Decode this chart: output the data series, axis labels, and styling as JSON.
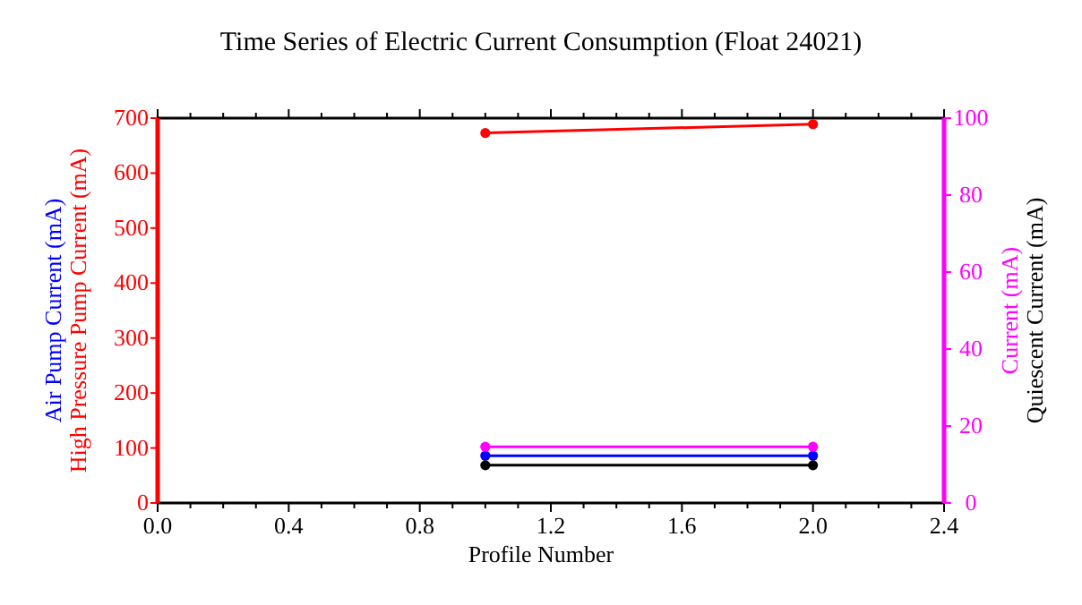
{
  "chart_data": {
    "type": "line",
    "title": "Time Series of Electric Current Consumption (Float 24021)",
    "xlabel": "Profile Number",
    "ylabel": "Air Pump Current (mA)\nHigh Pressure Pump Current (mA)",
    "y2label": "Current (mA)\nQuiescent Current (mA)",
    "x": [
      1,
      2
    ],
    "series": [
      {
        "color": "#0000ff",
        "values": [
          86,
          86
        ]
      },
      {
        "color": "#ff0000",
        "values": [
          673,
          689
        ]
      },
      {
        "color": "#ff00ff",
        "axis": "y2",
        "values": [
          14.6,
          14.6
        ]
      },
      {
        "color": "#000000",
        "axis": "y2",
        "values": [
          9.8,
          9.8
        ]
      }
    ],
    "xlim": [
      0,
      2.4
    ],
    "xticks": [
      {
        "value": 0,
        "label": "0.0"
      },
      {
        "value": 0.1,
        "label": null
      },
      {
        "value": 0.2,
        "label": null
      },
      {
        "value": 0.3,
        "label": null
      },
      {
        "value": 0.4,
        "label": "0.4"
      },
      {
        "value": 0.5,
        "label": null
      },
      {
        "value": 0.6,
        "label": null
      },
      {
        "value": 0.7,
        "label": null
      },
      {
        "value": 0.8,
        "label": "0.8"
      },
      {
        "value": 0.9,
        "label": null
      },
      {
        "value": 1.0,
        "label": null
      },
      {
        "value": 1.1,
        "label": null
      },
      {
        "value": 1.2,
        "label": "1.2"
      },
      {
        "value": 1.3,
        "label": null
      },
      {
        "value": 1.4,
        "label": null
      },
      {
        "value": 1.5,
        "label": null
      },
      {
        "value": 1.6,
        "label": "1.6"
      },
      {
        "value": 1.7,
        "label": null
      },
      {
        "value": 1.8,
        "label": null
      },
      {
        "value": 1.9,
        "label": null
      },
      {
        "value": 2.0,
        "label": "2.0"
      },
      {
        "value": 2.1,
        "label": null
      },
      {
        "value": 2.2,
        "label": null
      },
      {
        "value": 2.3,
        "label": null
      },
      {
        "value": 2.4,
        "label": "2.4"
      }
    ],
    "ylim": [
      0,
      700
    ],
    "yticks": [
      0,
      100,
      200,
      300,
      400,
      500,
      600,
      700
    ],
    "y2lim": [
      0,
      100
    ],
    "y2ticks": [
      0,
      20,
      40,
      60,
      80,
      100
    ],
    "grid": false,
    "marker": "circle",
    "line_style": "solid"
  }
}
